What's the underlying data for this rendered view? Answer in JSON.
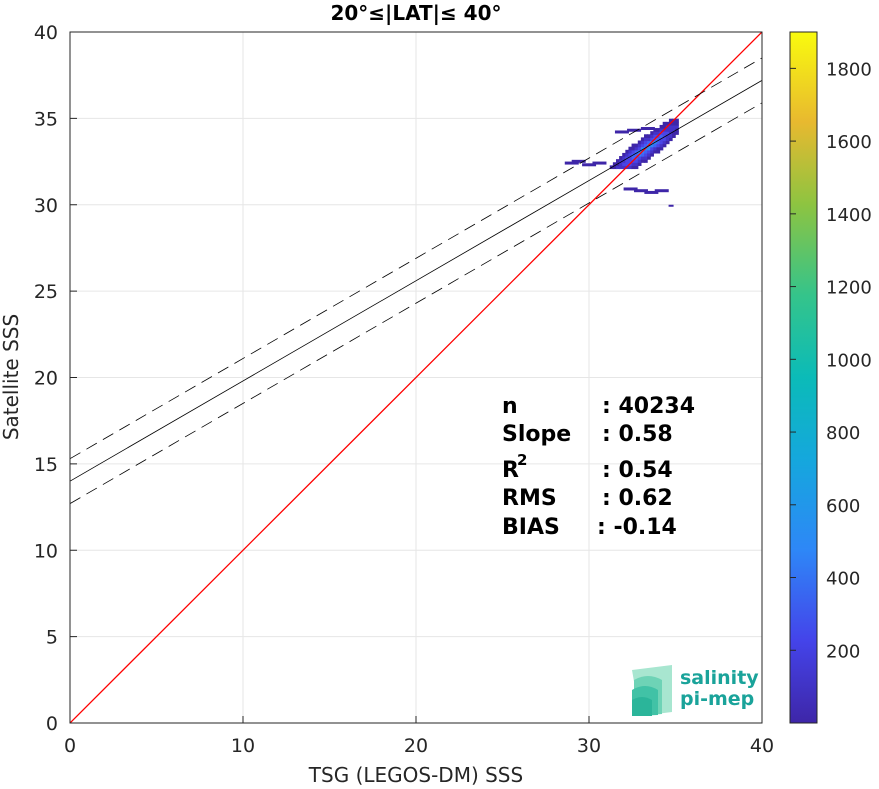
{
  "chart_data": {
    "type": "heatmap",
    "title": "20°≤|LAT|≤ 40°",
    "xlabel": "TSG (LEGOS-DM) SSS",
    "ylabel": "Satellite SSS",
    "xlim": [
      0,
      40
    ],
    "ylim": [
      0,
      40
    ],
    "xticks": [
      "0",
      "10",
      "20",
      "30",
      "40"
    ],
    "yticks": [
      "0",
      "5",
      "10",
      "15",
      "20",
      "25",
      "30",
      "35",
      "40"
    ],
    "grid": true,
    "colorbar": {
      "range": [
        0,
        1900
      ],
      "ticks": [
        "200",
        "400",
        "600",
        "800",
        "1000",
        "1200",
        "1400",
        "1600",
        "1800"
      ],
      "colormap": "parula"
    },
    "lines": [
      {
        "kind": "one-to-one",
        "color": "#ff0000",
        "x": [
          0,
          40
        ],
        "y": [
          0,
          40
        ]
      },
      {
        "kind": "regression",
        "color": "#000000",
        "x": [
          0,
          40
        ],
        "y": [
          14.0,
          37.2
        ]
      },
      {
        "kind": "upper-bound",
        "color": "#000000",
        "dash": true,
        "x": [
          0,
          40
        ],
        "y": [
          15.3,
          38.5
        ]
      },
      {
        "kind": "lower-bound",
        "color": "#000000",
        "dash": true,
        "x": [
          0,
          40
        ],
        "y": [
          12.7,
          35.9
        ]
      }
    ],
    "density_cloud": {
      "x_range": [
        28.5,
        35.0
      ],
      "y_range": [
        29.9,
        34.9
      ],
      "center": [
        33.2,
        33.2
      ],
      "outlier": [
        34.6,
        30.0
      ]
    },
    "stats": [
      {
        "label": "n",
        "value": ": 40234"
      },
      {
        "label": "Slope",
        "value": ": 0.58"
      },
      {
        "label": "R",
        "sup": "2",
        "value": ": 0.54"
      },
      {
        "label": "RMS",
        "value": ": 0.62"
      },
      {
        "label": "BIAS",
        "value": ": -0.14"
      }
    ]
  },
  "logo": {
    "line1": "salinity",
    "line2": "pi-mep",
    "colors": [
      "#2bb59a",
      "#41c2a6",
      "#6ed3b6",
      "#a8e6d0"
    ]
  }
}
